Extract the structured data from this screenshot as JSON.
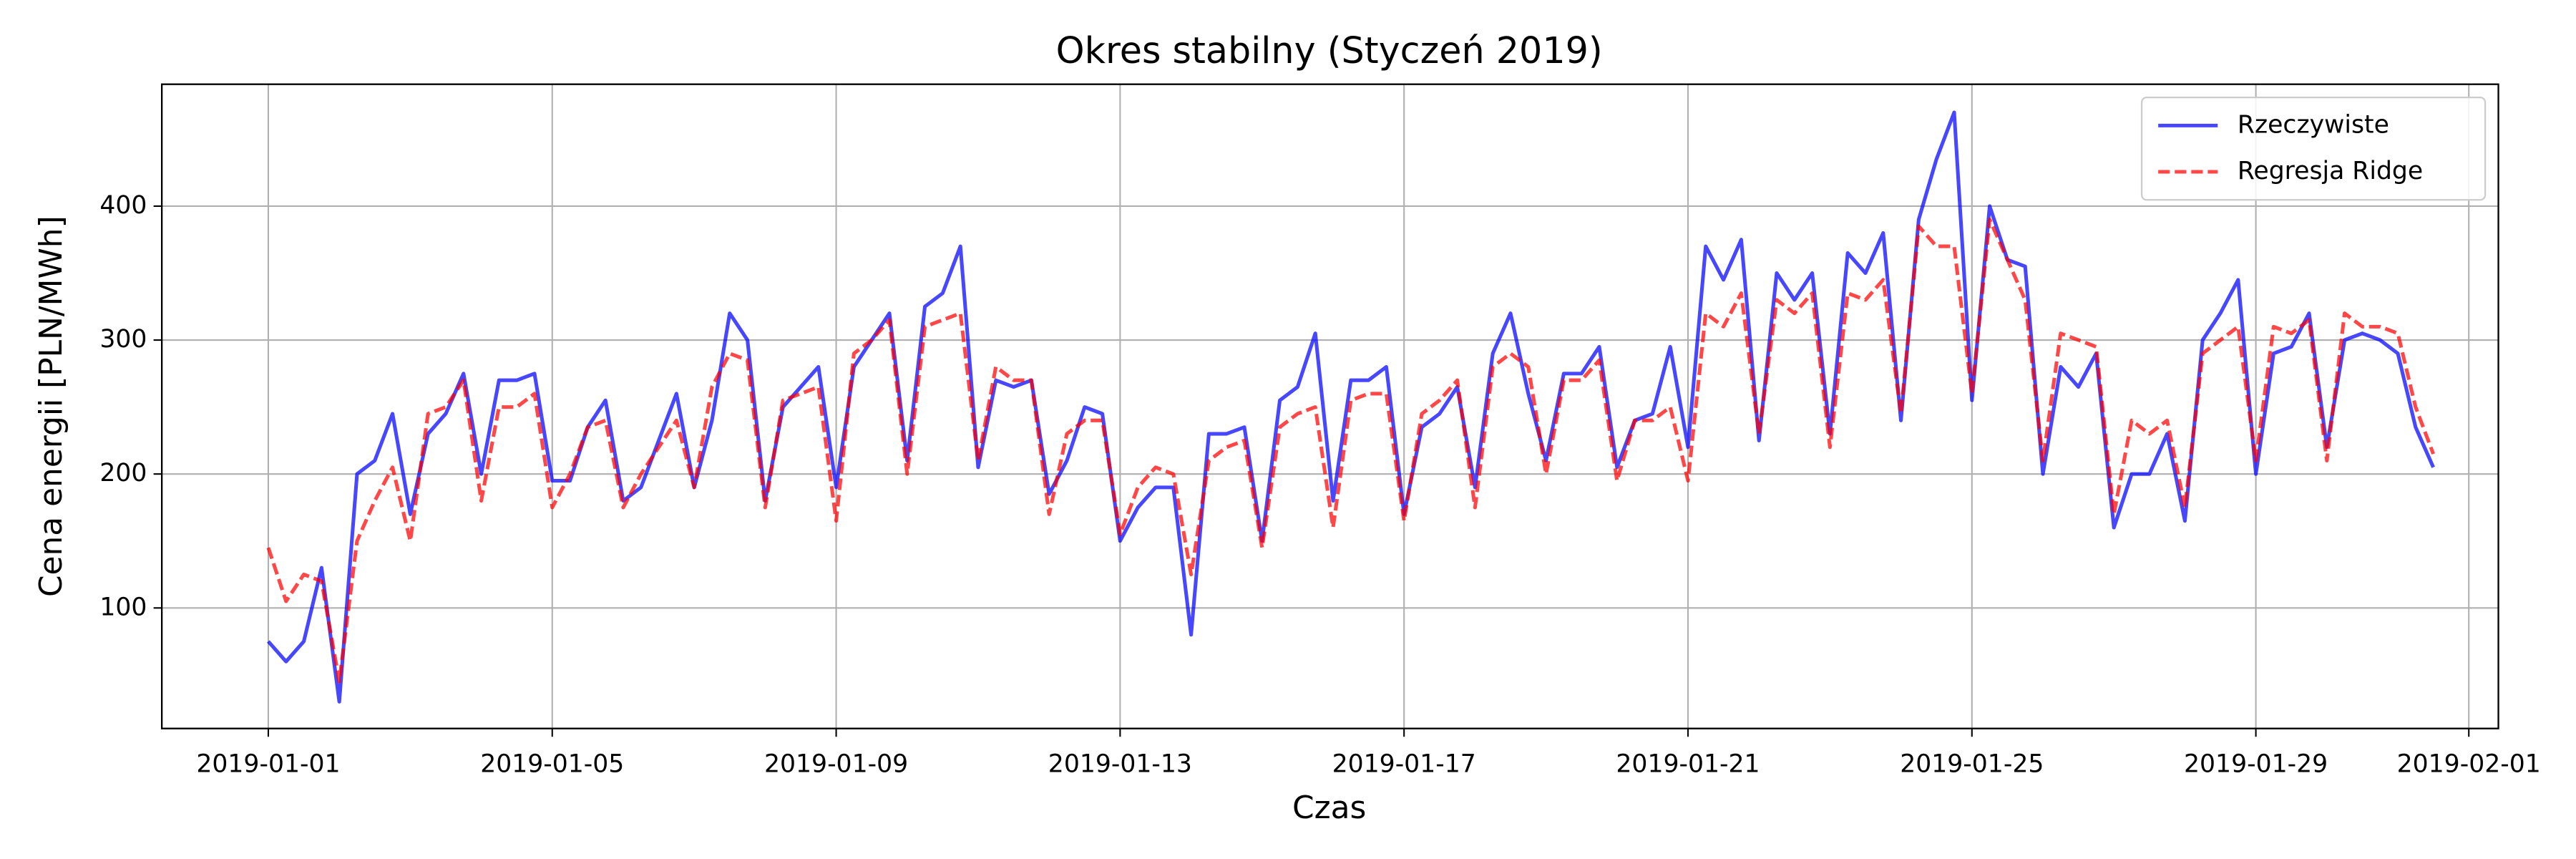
{
  "chart_data": {
    "type": "line",
    "title": "Okres stabilny (Styczeń 2019)",
    "x_label": "Czas",
    "y_label": "Cena energii [PLN/MWh]",
    "x": [
      "2019-01-01 00:00",
      "2019-01-01 06:00",
      "2019-01-01 12:00",
      "2019-01-01 18:00",
      "2019-01-02 00:00",
      "2019-01-02 06:00",
      "2019-01-02 12:00",
      "2019-01-02 18:00",
      "2019-01-03 00:00",
      "2019-01-03 06:00",
      "2019-01-03 12:00",
      "2019-01-03 18:00",
      "2019-01-04 00:00",
      "2019-01-04 06:00",
      "2019-01-04 12:00",
      "2019-01-04 18:00",
      "2019-01-05 00:00",
      "2019-01-05 06:00",
      "2019-01-05 12:00",
      "2019-01-05 18:00",
      "2019-01-06 00:00",
      "2019-01-06 06:00",
      "2019-01-06 12:00",
      "2019-01-06 18:00",
      "2019-01-07 00:00",
      "2019-01-07 06:00",
      "2019-01-07 12:00",
      "2019-01-07 18:00",
      "2019-01-08 00:00",
      "2019-01-08 06:00",
      "2019-01-08 12:00",
      "2019-01-08 18:00",
      "2019-01-09 00:00",
      "2019-01-09 06:00",
      "2019-01-09 12:00",
      "2019-01-09 18:00",
      "2019-01-10 00:00",
      "2019-01-10 06:00",
      "2019-01-10 12:00",
      "2019-01-10 18:00",
      "2019-01-11 00:00",
      "2019-01-11 06:00",
      "2019-01-11 12:00",
      "2019-01-11 18:00",
      "2019-01-12 00:00",
      "2019-01-12 06:00",
      "2019-01-12 12:00",
      "2019-01-12 18:00",
      "2019-01-13 00:00",
      "2019-01-13 06:00",
      "2019-01-13 12:00",
      "2019-01-13 18:00",
      "2019-01-14 00:00",
      "2019-01-14 06:00",
      "2019-01-14 12:00",
      "2019-01-14 18:00",
      "2019-01-15 00:00",
      "2019-01-15 06:00",
      "2019-01-15 12:00",
      "2019-01-15 18:00",
      "2019-01-16 00:00",
      "2019-01-16 06:00",
      "2019-01-16 12:00",
      "2019-01-16 18:00",
      "2019-01-17 00:00",
      "2019-01-17 06:00",
      "2019-01-17 12:00",
      "2019-01-17 18:00",
      "2019-01-18 00:00",
      "2019-01-18 06:00",
      "2019-01-18 12:00",
      "2019-01-18 18:00",
      "2019-01-19 00:00",
      "2019-01-19 06:00",
      "2019-01-19 12:00",
      "2019-01-19 18:00",
      "2019-01-20 00:00",
      "2019-01-20 06:00",
      "2019-01-20 12:00",
      "2019-01-20 18:00",
      "2019-01-21 00:00",
      "2019-01-21 06:00",
      "2019-01-21 12:00",
      "2019-01-21 18:00",
      "2019-01-22 00:00",
      "2019-01-22 06:00",
      "2019-01-22 12:00",
      "2019-01-22 18:00",
      "2019-01-23 00:00",
      "2019-01-23 06:00",
      "2019-01-23 12:00",
      "2019-01-23 18:00",
      "2019-01-24 00:00",
      "2019-01-24 06:00",
      "2019-01-24 12:00",
      "2019-01-24 18:00",
      "2019-01-25 00:00",
      "2019-01-25 06:00",
      "2019-01-25 12:00",
      "2019-01-25 18:00",
      "2019-01-26 00:00",
      "2019-01-26 06:00",
      "2019-01-26 12:00",
      "2019-01-26 18:00",
      "2019-01-27 00:00",
      "2019-01-27 06:00",
      "2019-01-27 12:00",
      "2019-01-27 18:00",
      "2019-01-28 00:00",
      "2019-01-28 06:00",
      "2019-01-28 12:00",
      "2019-01-28 18:00",
      "2019-01-29 00:00",
      "2019-01-29 06:00",
      "2019-01-29 12:00",
      "2019-01-29 18:00",
      "2019-01-30 00:00",
      "2019-01-30 06:00",
      "2019-01-30 12:00",
      "2019-01-30 18:00",
      "2019-01-31 00:00",
      "2019-01-31 06:00",
      "2019-01-31 12:00"
    ],
    "series": [
      {
        "name": "Rzeczywiste",
        "color": "#0000ff",
        "dash": false,
        "values": [
          75,
          60,
          75,
          130,
          30,
          200,
          210,
          245,
          170,
          230,
          245,
          275,
          200,
          270,
          270,
          275,
          195,
          195,
          235,
          255,
          180,
          190,
          225,
          260,
          190,
          240,
          320,
          300,
          180,
          250,
          265,
          280,
          190,
          280,
          300,
          320,
          210,
          325,
          335,
          370,
          205,
          270,
          265,
          270,
          185,
          210,
          250,
          245,
          150,
          175,
          190,
          190,
          80,
          230,
          230,
          235,
          150,
          255,
          265,
          305,
          180,
          270,
          270,
          280,
          170,
          235,
          245,
          265,
          190,
          290,
          320,
          260,
          210,
          275,
          275,
          295,
          205,
          240,
          245,
          295,
          220,
          370,
          345,
          375,
          225,
          350,
          330,
          350,
          230,
          365,
          350,
          380,
          240,
          390,
          435,
          470,
          255,
          400,
          360,
          355,
          200,
          280,
          265,
          290,
          160,
          200,
          200,
          230,
          165,
          300,
          320,
          345,
          200,
          290,
          295,
          320,
          220,
          300,
          305,
          300,
          290,
          235,
          205
        ]
      },
      {
        "name": "Regresja Ridge",
        "color": "#ff0000",
        "dash": true,
        "values": [
          145,
          105,
          125,
          120,
          45,
          150,
          180,
          205,
          150,
          245,
          250,
          270,
          180,
          250,
          250,
          260,
          175,
          200,
          235,
          240,
          175,
          200,
          220,
          240,
          190,
          265,
          290,
          285,
          175,
          255,
          260,
          265,
          165,
          290,
          300,
          315,
          200,
          310,
          315,
          320,
          210,
          280,
          270,
          270,
          170,
          230,
          240,
          240,
          155,
          190,
          205,
          200,
          125,
          210,
          220,
          225,
          145,
          235,
          245,
          250,
          160,
          255,
          260,
          260,
          165,
          245,
          255,
          270,
          175,
          280,
          290,
          280,
          200,
          270,
          270,
          285,
          195,
          240,
          240,
          250,
          195,
          320,
          310,
          335,
          230,
          330,
          320,
          335,
          220,
          335,
          330,
          345,
          245,
          385,
          370,
          370,
          260,
          390,
          360,
          330,
          210,
          305,
          300,
          295,
          170,
          240,
          230,
          240,
          175,
          290,
          300,
          310,
          210,
          310,
          305,
          315,
          210,
          320,
          310,
          310,
          305,
          250,
          215
        ]
      }
    ],
    "xlim": [
      "2018-12-30 12:00",
      "2019-02-01 10:00"
    ],
    "xticks": [
      "2019-01-01",
      "2019-01-05",
      "2019-01-09",
      "2019-01-13",
      "2019-01-17",
      "2019-01-21",
      "2019-01-25",
      "2019-01-29",
      "2019-02-01"
    ],
    "ylim": [
      10,
      491
    ],
    "yticks": [
      100,
      200,
      300,
      400
    ],
    "grid": true,
    "legend": "upper right"
  }
}
